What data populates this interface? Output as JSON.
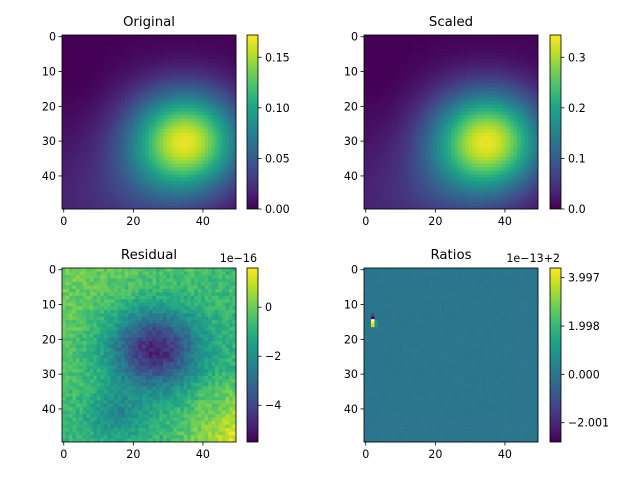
{
  "chart_data": [
    {
      "type": "heatmap",
      "title": "Original",
      "x_ticks": [
        "0",
        "20",
        "40"
      ],
      "y_ticks": [
        "0",
        "10",
        "20",
        "30",
        "40"
      ],
      "xlim": [
        -0.5,
        49.5
      ],
      "ylim": [
        49.5,
        -0.5
      ],
      "colorbar_ticks": [
        "0.00",
        "0.05",
        "0.10",
        "0.15"
      ],
      "colorbar_tick_values": [
        0.0,
        0.05,
        0.1,
        0.15
      ],
      "colorbar_range": [
        0.0,
        0.172
      ],
      "colorbar_offset": "",
      "colormap": "viridis",
      "features": {
        "peak": {
          "x": 35,
          "y": 30,
          "value": 0.172
        },
        "minimum": {
          "x": 2,
          "y": 12,
          "value": 0.0
        },
        "description_values_range": [
          0.0,
          0.172
        ]
      }
    },
    {
      "type": "heatmap",
      "title": "Scaled",
      "x_ticks": [
        "0",
        "20",
        "40"
      ],
      "y_ticks": [
        "0",
        "10",
        "20",
        "30",
        "40"
      ],
      "xlim": [
        -0.5,
        49.5
      ],
      "ylim": [
        49.5,
        -0.5
      ],
      "colorbar_ticks": [
        "0.0",
        "0.1",
        "0.2",
        "0.3"
      ],
      "colorbar_tick_values": [
        0.0,
        0.1,
        0.2,
        0.3
      ],
      "colorbar_range": [
        0.0,
        0.344
      ],
      "colorbar_offset": "",
      "colormap": "viridis",
      "features": {
        "peak": {
          "x": 35,
          "y": 30,
          "value": 0.344
        },
        "minimum": {
          "x": 2,
          "y": 12,
          "value": 0.0
        }
      }
    },
    {
      "type": "heatmap",
      "title": "Residual",
      "x_ticks": [
        "0",
        "20",
        "40"
      ],
      "y_ticks": [
        "0",
        "10",
        "20",
        "30",
        "40"
      ],
      "xlim": [
        -0.5,
        49.5
      ],
      "ylim": [
        49.5,
        -0.5
      ],
      "colorbar_ticks": [
        "0",
        "−2",
        "−4"
      ],
      "colorbar_tick_values": [
        0,
        -2,
        -4
      ],
      "colorbar_range": [
        -5.5,
        1.6
      ],
      "colorbar_offset": "1e−16",
      "colormap": "viridis",
      "features": {
        "minimum": {
          "x": 26,
          "y": 23,
          "value": -5.5
        },
        "maximum": {
          "x": 44,
          "y": 42,
          "value": 1.6
        }
      }
    },
    {
      "type": "heatmap",
      "title": "Ratios",
      "x_ticks": [
        "0",
        "20",
        "40"
      ],
      "y_ticks": [
        "0",
        "10",
        "20",
        "30",
        "40"
      ],
      "xlim": [
        -0.5,
        49.5
      ],
      "ylim": [
        49.5,
        -0.5
      ],
      "colorbar_ticks": [
        "3.997",
        "1.998",
        "0.000",
        "−2.001"
      ],
      "colorbar_tick_values": [
        3.997,
        1.998,
        0.0,
        -2.001
      ],
      "colorbar_range": [
        -2.8,
        4.4
      ],
      "colorbar_offset": "1e−13+2",
      "colormap": "viridis",
      "features": {
        "background_value": 0.0,
        "outliers": [
          {
            "x": 2,
            "y": 14,
            "value": -2.8
          },
          {
            "x": 2,
            "y": 15,
            "value": 4.4
          },
          {
            "x": 2,
            "y": 16,
            "value": 3.9
          }
        ]
      }
    }
  ]
}
